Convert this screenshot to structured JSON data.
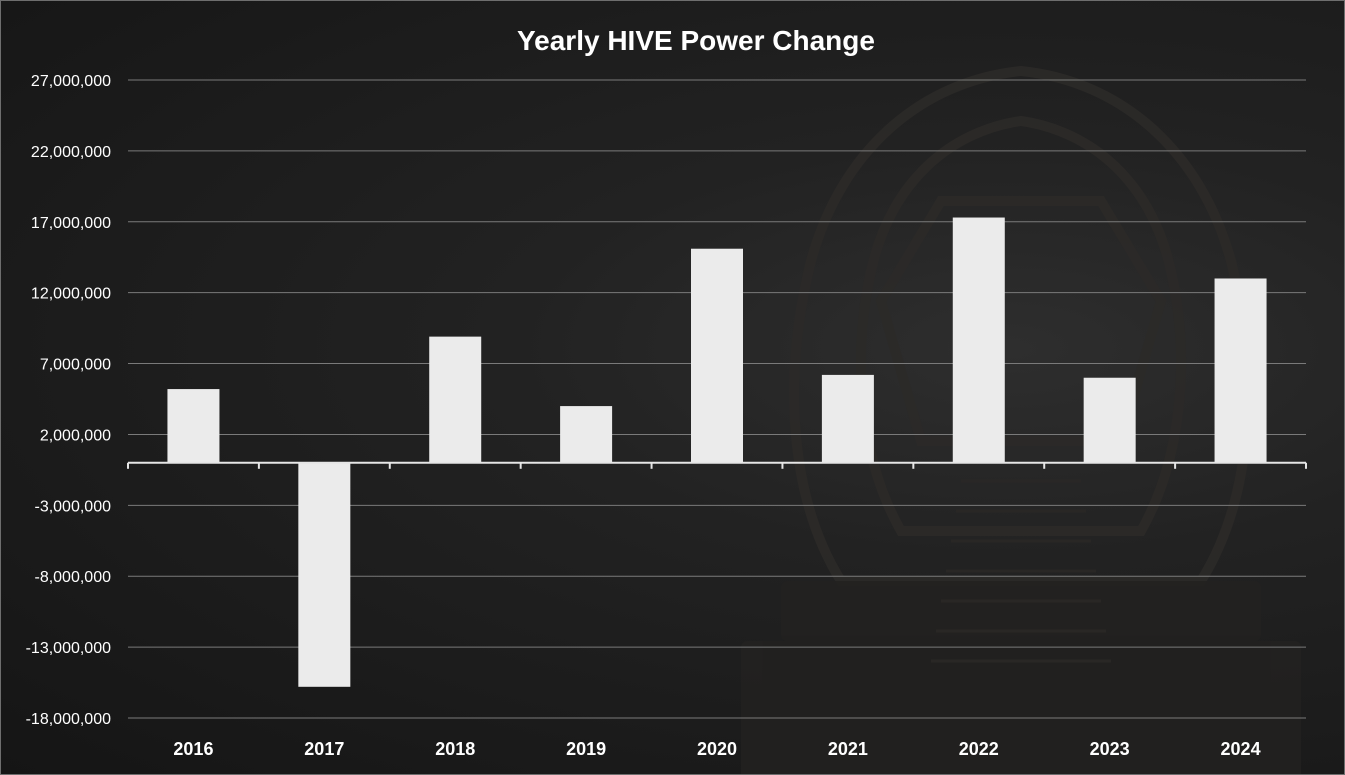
{
  "chart_data": {
    "type": "bar",
    "title": "Yearly HIVE Power Change",
    "xlabel": "",
    "ylabel": "",
    "categories": [
      "2016",
      "2017",
      "2018",
      "2019",
      "2020",
      "2021",
      "2022",
      "2023",
      "2024"
    ],
    "values": [
      5200000,
      -15800000,
      8900000,
      4000000,
      15100000,
      6200000,
      17300000,
      6000000,
      13000000
    ],
    "y_ticks": [
      "27,000,000",
      "22,000,000",
      "17,000,000",
      "12,000,000",
      "7,000,000",
      "2,000,000",
      "-3,000,000",
      "-8,000,000",
      "-13,000,000",
      "-18,000,000"
    ],
    "y_tick_values": [
      27000000,
      22000000,
      17000000,
      12000000,
      7000000,
      2000000,
      -3000000,
      -8000000,
      -13000000,
      -18000000
    ],
    "ylim": [
      -18000000,
      27000000
    ],
    "grid": true,
    "legend": "none",
    "bar_color": "#ebebeb",
    "background_color": "#1e1e1e",
    "text_color": "#ffffff"
  }
}
